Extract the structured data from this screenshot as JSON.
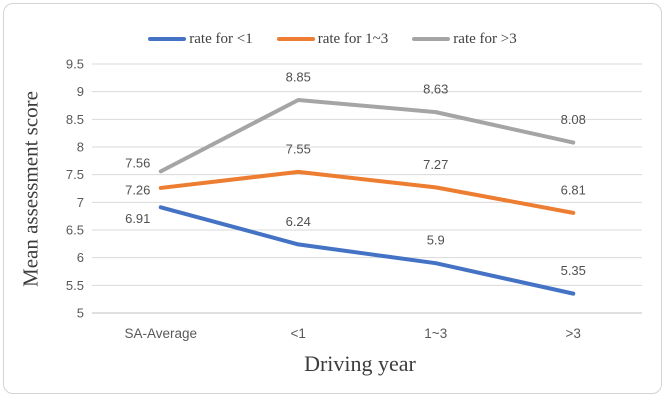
{
  "chart_data": {
    "type": "line",
    "title": "",
    "xlabel": "Driving year",
    "ylabel": "Mean assessment score",
    "categories": [
      "SA-Average",
      "<1",
      "1~3",
      ">3"
    ],
    "series": [
      {
        "name": "rate for <1",
        "color": "#4472C4",
        "values": [
          6.91,
          6.24,
          5.9,
          5.35
        ],
        "labels": [
          "6.91",
          "6.24",
          "5.9",
          "5.35"
        ]
      },
      {
        "name": "rate for 1~3",
        "color": "#ED7D31",
        "values": [
          7.26,
          7.55,
          7.27,
          6.81
        ],
        "labels": [
          "7.26",
          "7.55",
          "7.27",
          "6.81"
        ]
      },
      {
        "name": "rate for >3",
        "color": "#A5A5A5",
        "values": [
          7.56,
          8.85,
          8.63,
          8.08
        ],
        "labels": [
          "7.56",
          "8.85",
          "8.63",
          "8.08"
        ]
      }
    ],
    "ylim": [
      5,
      9.5
    ],
    "yticks": [
      "5",
      "5.5",
      "6",
      "6.5",
      "7",
      "7.5",
      "8",
      "8.5",
      "9",
      "9.5"
    ],
    "legend_position": "top",
    "grid": true,
    "colors": {
      "gridline": "#D9D9D9",
      "axis_line": "#BFBFBF",
      "tick_text": "#595959",
      "data_label_text": "#515151",
      "background": "#FFFFFF",
      "frame_border": "#D4D4D4"
    }
  }
}
